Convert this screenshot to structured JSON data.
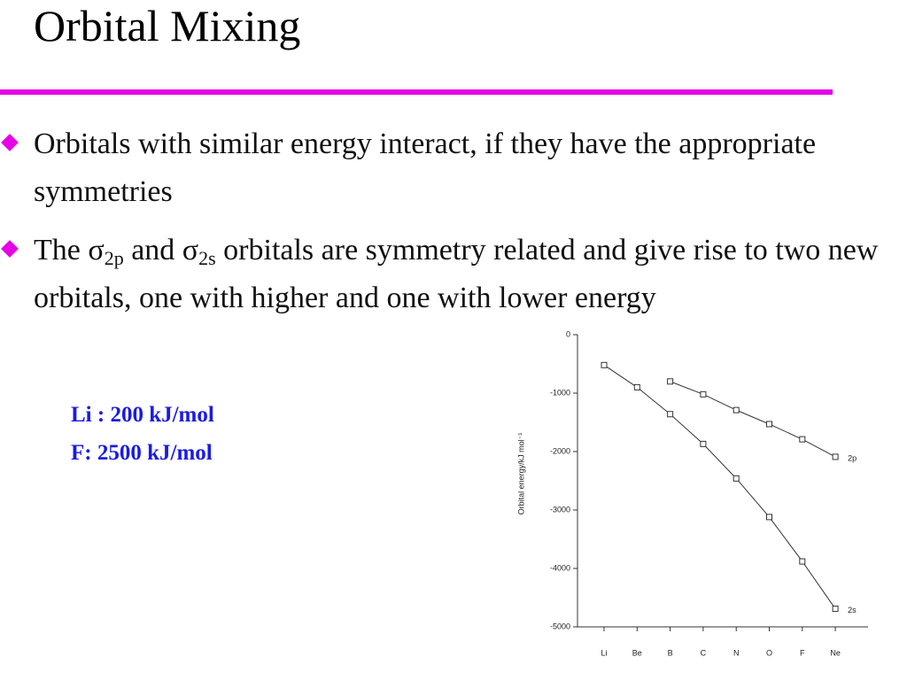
{
  "slide": {
    "title": "Orbital Mixing",
    "bullets": [
      [
        {
          "text": "Orbitals with similar energy interact, if they have the appropriate symmetries"
        }
      ],
      [
        {
          "text": "The "
        },
        {
          "text": "σ"
        },
        {
          "sub": "2p"
        },
        {
          "text": " and "
        },
        {
          "text": "σ"
        },
        {
          "sub": "2s"
        },
        {
          "text": " orbitals are symmetry related and give rise to two new orbitals, one with higher and one with lower energy"
        }
      ]
    ],
    "notes": [
      "Li : 200 kJ/mol",
      "F: 2500 kJ/mol"
    ]
  },
  "chart_data": {
    "type": "line",
    "ylabel": "Orbital energy/kJ mol⁻¹",
    "categories": [
      "Li",
      "Be",
      "B",
      "C",
      "N",
      "O",
      "F",
      "Ne"
    ],
    "series": [
      {
        "name": "2s",
        "color": "#333333",
        "values": [
          -520,
          -900,
          -1360,
          -1870,
          -2460,
          -3120,
          -3880,
          -4690
        ]
      },
      {
        "name": "2p",
        "color": "#333333",
        "values": [
          null,
          null,
          -800,
          -1020,
          -1290,
          -1530,
          -1790,
          -2090
        ]
      }
    ],
    "ylim": [
      -5000,
      0
    ],
    "yticks": [
      0,
      -1000,
      -2000,
      -3000,
      -4000,
      -5000
    ],
    "grid": false
  }
}
